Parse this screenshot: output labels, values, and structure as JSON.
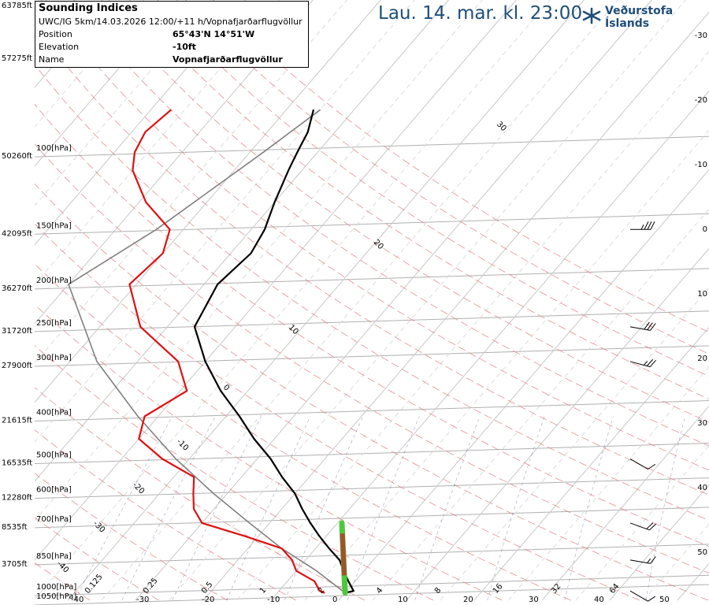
{
  "header": {
    "valid_time": "Lau. 14. mar. kl. 23:00",
    "brand_name": "Veðurstofa Íslands",
    "brand_icon": "snowflake-icon"
  },
  "info_box": {
    "title": "Sounding Indices",
    "model_run": "UWC/IG 5km/14.03.2026 12:00/+11 h/Vopnafjarðarflugvöllur",
    "rows": [
      {
        "key": "Position",
        "value": "65°43'N 14°51'W"
      },
      {
        "key": "Elevation",
        "value": "-10ft"
      },
      {
        "key": "Name",
        "value": "Vopnafjarðarflugvöllur"
      }
    ]
  },
  "colors": {
    "temperature": "#dd1111",
    "dewpoint": "#dd1111",
    "temperature_profile": "#000000",
    "parcel": "#808080",
    "isotherm": "#b0b0b0",
    "dry_adiabat": "#e07b7b",
    "moist_adiabat": "#e07b7b",
    "mixing_ratio": "#6b5ba0",
    "accent": "#1f4e79",
    "cape_green": "#4cc93a",
    "cape_brown": "#a0522d"
  },
  "chart_data": {
    "type": "line",
    "title": "",
    "xlabel": "",
    "ylabel": "",
    "pressure_levels": [
      {
        "p": 100,
        "label": "100[hPa]",
        "alt": "50260ft"
      },
      {
        "p": 150,
        "label": "150[hPa]",
        "alt": "42095ft"
      },
      {
        "p": 200,
        "label": "200[hPa]",
        "alt": "36270ft"
      },
      {
        "p": 250,
        "label": "250[hPa]",
        "alt": "31720ft"
      },
      {
        "p": 300,
        "label": "300[hPa]",
        "alt": "27900ft"
      },
      {
        "p": 400,
        "label": "400[hPa]",
        "alt": "21615ft"
      },
      {
        "p": 500,
        "label": "500[hPa]",
        "alt": "16535ft"
      },
      {
        "p": 600,
        "label": "600[hPa]",
        "alt": "12280ft"
      },
      {
        "p": 700,
        "label": "700[hPa]",
        "alt": "8535ft"
      },
      {
        "p": 850,
        "label": "850[hPa]",
        "alt": "3705ft"
      },
      {
        "p": 1000,
        "label": "1000[hPa]",
        "alt": ""
      },
      {
        "p": 1050,
        "label": "1050[hPa]",
        "alt": ""
      }
    ],
    "top_altitude_labels": [
      "63785ft",
      "57275ft"
    ],
    "right_axis_labels": [
      "-30",
      "-20",
      "-10",
      "0",
      "10",
      "20",
      "30",
      "40",
      "50"
    ],
    "bottom_temperature_labels": [
      "-40",
      "-30",
      "-20",
      "-10",
      "0",
      "10",
      "20",
      "30",
      "40",
      "50"
    ],
    "mixing_ratio_labels": [
      "0.125",
      "0.25",
      "0.5",
      "1",
      "2",
      "4",
      "8",
      "16",
      "32",
      "64"
    ],
    "isotherm_labels": [
      "30",
      "20",
      "10",
      "0",
      "-10",
      "-20",
      "-30",
      "-40"
    ],
    "temperature_profile": [
      {
        "p": 1010,
        "t": 0
      },
      {
        "p": 1000,
        "t": 1
      },
      {
        "p": 950,
        "t": -1
      },
      {
        "p": 900,
        "t": -3
      },
      {
        "p": 850,
        "t": -5
      },
      {
        "p": 800,
        "t": -8
      },
      {
        "p": 750,
        "t": -11
      },
      {
        "p": 700,
        "t": -14
      },
      {
        "p": 650,
        "t": -17
      },
      {
        "p": 600,
        "t": -20
      },
      {
        "p": 550,
        "t": -24
      },
      {
        "p": 500,
        "t": -28
      },
      {
        "p": 450,
        "t": -33
      },
      {
        "p": 400,
        "t": -38
      },
      {
        "p": 350,
        "t": -44
      },
      {
        "p": 300,
        "t": -50
      },
      {
        "p": 250,
        "t": -56
      },
      {
        "p": 200,
        "t": -58
      },
      {
        "p": 170,
        "t": -57
      },
      {
        "p": 150,
        "t": -58
      },
      {
        "p": 130,
        "t": -60
      },
      {
        "p": 110,
        "t": -62
      },
      {
        "p": 100,
        "t": -63
      },
      {
        "p": 90,
        "t": -64
      },
      {
        "p": 80,
        "t": -66
      }
    ],
    "dewpoint_profile": [
      {
        "p": 1010,
        "t": -3
      },
      {
        "p": 1000,
        "t": -4
      },
      {
        "p": 950,
        "t": -6
      },
      {
        "p": 900,
        "t": -10
      },
      {
        "p": 850,
        "t": -12
      },
      {
        "p": 800,
        "t": -15
      },
      {
        "p": 750,
        "t": -22
      },
      {
        "p": 700,
        "t": -30
      },
      {
        "p": 650,
        "t": -33
      },
      {
        "p": 600,
        "t": -35
      },
      {
        "p": 550,
        "t": -37
      },
      {
        "p": 500,
        "t": -44
      },
      {
        "p": 450,
        "t": -50
      },
      {
        "p": 400,
        "t": -52
      },
      {
        "p": 350,
        "t": -49
      },
      {
        "p": 300,
        "t": -54
      },
      {
        "p": 250,
        "t": -64
      },
      {
        "p": 200,
        "t": -71
      },
      {
        "p": 170,
        "t": -70
      },
      {
        "p": 150,
        "t": -72
      },
      {
        "p": 130,
        "t": -79
      },
      {
        "p": 110,
        "t": -85
      },
      {
        "p": 100,
        "t": -87
      },
      {
        "p": 90,
        "t": -88
      },
      {
        "p": 80,
        "t": -87
      }
    ],
    "parcel_profile": [
      {
        "p": 1010,
        "t": 0
      },
      {
        "p": 900,
        "t": -7
      },
      {
        "p": 800,
        "t": -15
      },
      {
        "p": 700,
        "t": -23
      },
      {
        "p": 600,
        "t": -32
      },
      {
        "p": 500,
        "t": -42
      },
      {
        "p": 400,
        "t": -53
      },
      {
        "p": 300,
        "t": -66
      },
      {
        "p": 200,
        "t": -80
      },
      {
        "p": 150,
        "t": -74
      },
      {
        "p": 100,
        "t": -68
      },
      {
        "p": 80,
        "t": -65
      }
    ],
    "wind_barbs": [
      {
        "p": 150,
        "dir": 270,
        "speed": 35
      },
      {
        "p": 250,
        "dir": 280,
        "speed": 30
      },
      {
        "p": 300,
        "dir": 285,
        "speed": 25
      },
      {
        "p": 500,
        "dir": 300,
        "speed": 10
      },
      {
        "p": 700,
        "dir": 290,
        "speed": 20
      },
      {
        "p": 850,
        "dir": 280,
        "speed": 15
      },
      {
        "p": 1000,
        "dir": 300,
        "speed": 10
      }
    ],
    "grid": true,
    "legend": "none"
  }
}
